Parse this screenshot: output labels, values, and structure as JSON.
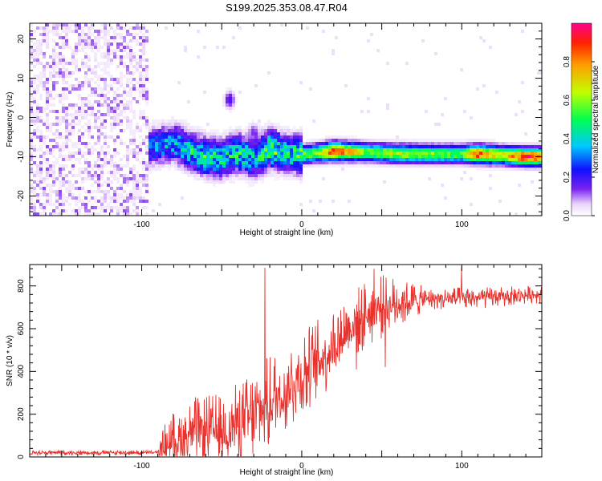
{
  "title": "S199.2025.353.08.47.R04",
  "chart_data": [
    {
      "type": "heatmap",
      "xlabel": "Height of straight line (km)",
      "ylabel": "Frequency (Hz)",
      "xlim": [
        -170,
        150
      ],
      "ylim": [
        -25,
        24
      ],
      "xticks": [
        -100,
        0,
        100
      ],
      "yticks": [
        -20,
        -10,
        0,
        10,
        20
      ],
      "colorbar": {
        "label": "Normalized spectral amplitude",
        "range": [
          0,
          1
        ],
        "ticks": [
          "0.0",
          "0.2",
          "0.4",
          "0.6",
          "0.8"
        ],
        "tick_values": [
          0,
          0.2,
          0.4,
          0.6,
          0.8
        ]
      },
      "noise_region": {
        "x_from": -170,
        "x_to": -95,
        "amplitude_range": [
          0.0,
          0.12
        ]
      },
      "ridge": [
        {
          "x": -95,
          "freq": -7.5,
          "amp": 0.3
        },
        {
          "x": -80,
          "freq": -6.5,
          "amp": 0.4
        },
        {
          "x": -70,
          "freq": -8.5,
          "amp": 0.45
        },
        {
          "x": -60,
          "freq": -10.0,
          "amp": 0.5
        },
        {
          "x": -50,
          "freq": -10.5,
          "amp": 0.45
        },
        {
          "x": -40,
          "freq": -9.0,
          "amp": 0.5
        },
        {
          "x": -30,
          "freq": -10.5,
          "amp": 0.4
        },
        {
          "x": -20,
          "freq": -8.0,
          "amp": 0.6
        },
        {
          "x": -10,
          "freq": -9.0,
          "amp": 0.45
        },
        {
          "x": 0,
          "freq": -9.5,
          "amp": 0.55
        },
        {
          "x": 10,
          "freq": -9.0,
          "amp": 0.6
        },
        {
          "x": 20,
          "freq": -8.5,
          "amp": 0.95
        },
        {
          "x": 40,
          "freq": -8.8,
          "amp": 0.6
        },
        {
          "x": 60,
          "freq": -9.2,
          "amp": 0.65
        },
        {
          "x": 80,
          "freq": -9.3,
          "amp": 0.6
        },
        {
          "x": 100,
          "freq": -9.3,
          "amp": 0.55
        },
        {
          "x": 110,
          "freq": -9.3,
          "amp": 0.9
        },
        {
          "x": 125,
          "freq": -9.6,
          "amp": 0.7
        },
        {
          "x": 140,
          "freq": -10.0,
          "amp": 0.95
        },
        {
          "x": 150,
          "freq": -10.0,
          "amp": 0.85
        }
      ],
      "blobs": [
        {
          "x": -45,
          "freq": 4.5,
          "amp": 0.2
        },
        {
          "x": -30,
          "freq": -3.5,
          "amp": 0.12
        }
      ]
    },
    {
      "type": "line",
      "xlabel": "Height of straight line (km)",
      "ylabel": "SNR (10 * v/v)",
      "xlim": [
        -170,
        150
      ],
      "ylim": [
        0,
        900
      ],
      "xticks": [
        -100,
        0,
        100
      ],
      "yticks": [
        0,
        200,
        400,
        600,
        800
      ],
      "color": "#e8322d",
      "envelope": [
        {
          "x": -170,
          "base": 20,
          "amp": 12
        },
        {
          "x": -90,
          "base": 20,
          "amp": 12
        },
        {
          "x": -85,
          "base": 60,
          "amp": 120
        },
        {
          "x": -70,
          "base": 110,
          "amp": 170
        },
        {
          "x": -50,
          "base": 120,
          "amp": 180
        },
        {
          "x": -35,
          "base": 170,
          "amp": 200
        },
        {
          "x": -20,
          "base": 250,
          "amp": 230
        },
        {
          "x": 0,
          "base": 380,
          "amp": 220
        },
        {
          "x": 15,
          "base": 480,
          "amp": 190
        },
        {
          "x": 30,
          "base": 610,
          "amp": 160
        },
        {
          "x": 45,
          "base": 690,
          "amp": 170
        },
        {
          "x": 60,
          "base": 720,
          "amp": 120
        },
        {
          "x": 80,
          "base": 740,
          "amp": 50
        },
        {
          "x": 100,
          "base": 740,
          "amp": 55
        },
        {
          "x": 150,
          "base": 760,
          "amp": 40
        }
      ],
      "spikes": [
        {
          "x": -23,
          "value": 885
        },
        {
          "x": 45,
          "value": 880
        },
        {
          "x": 100,
          "value": 890
        },
        {
          "x": 52,
          "value": 420
        },
        {
          "x": 34,
          "value": 410
        }
      ]
    }
  ]
}
